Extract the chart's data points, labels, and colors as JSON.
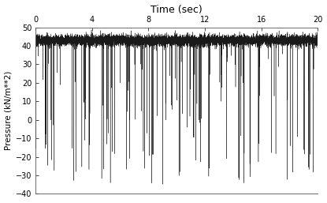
{
  "title": "Time (sec)",
  "ylabel": "Pressure (kN/m**2)",
  "xlim": [
    0,
    20
  ],
  "ylim": [
    -40,
    50
  ],
  "xticks": [
    0,
    4,
    8,
    12,
    16,
    20
  ],
  "yticks": [
    -40,
    -30,
    -20,
    -10,
    0,
    10,
    20,
    30,
    40,
    50
  ],
  "line_color": "#1a1a1a",
  "bg_color": "#ffffff",
  "seed": 7,
  "n_points": 8000,
  "base_value": 43.0,
  "top_noise_scale": 1.5,
  "spike_prob": 0.018,
  "spike_min": 5,
  "spike_max": 78,
  "title_fontsize": 9,
  "label_fontsize": 7.5,
  "tick_fontsize": 7,
  "linewidth": 0.28
}
